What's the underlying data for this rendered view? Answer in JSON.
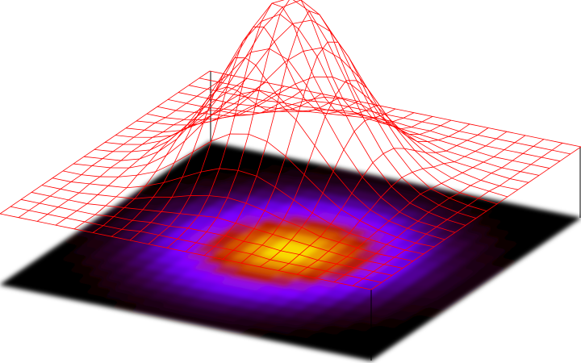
{
  "chart_data": {
    "type": "surface",
    "color": "#ff0000",
    "xlim": [
      -10,
      10
    ],
    "ylim": [
      -10,
      10
    ],
    "zlim": [
      0,
      1
    ],
    "x": [
      -10,
      -9,
      -8,
      -7,
      -6,
      -5,
      -4,
      -3,
      -2,
      -1,
      0,
      1,
      2,
      3,
      4,
      5,
      6,
      7,
      8,
      9,
      10
    ],
    "y": [
      -10,
      -9,
      -8,
      -7,
      -6,
      -5,
      -4,
      -3,
      -2,
      -1,
      0,
      1,
      2,
      3,
      4,
      5,
      6,
      7,
      8,
      9,
      10
    ],
    "z": [
      [
        0,
        0,
        0,
        0,
        0,
        0,
        0,
        0,
        0,
        0,
        0,
        0,
        0,
        0,
        0,
        0,
        0,
        0,
        0,
        0,
        0
      ],
      [
        0,
        0,
        0,
        0,
        0,
        0,
        0,
        0.01,
        0.01,
        0.01,
        0.01,
        0.01,
        0.01,
        0.01,
        0,
        0,
        0,
        0,
        0,
        0,
        0
      ],
      [
        0,
        0,
        0,
        0,
        0,
        0.01,
        0.01,
        0.02,
        0.02,
        0.03,
        0.03,
        0.03,
        0.02,
        0.02,
        0.01,
        0.01,
        0,
        0,
        0,
        0,
        0
      ],
      [
        0,
        0,
        0,
        0,
        0.01,
        0.02,
        0.03,
        0.04,
        0.05,
        0.06,
        0.07,
        0.06,
        0.05,
        0.04,
        0.03,
        0.02,
        0.01,
        0,
        0,
        0,
        0
      ],
      [
        0,
        0,
        0,
        0.01,
        0.02,
        0.03,
        0.06,
        0.08,
        0.11,
        0.13,
        0.14,
        0.13,
        0.11,
        0.08,
        0.06,
        0.03,
        0.02,
        0.01,
        0,
        0,
        0
      ],
      [
        0,
        0,
        0.01,
        0.02,
        0.03,
        0.06,
        0.1,
        0.15,
        0.2,
        0.24,
        0.25,
        0.24,
        0.2,
        0.15,
        0.1,
        0.06,
        0.03,
        0.02,
        0.01,
        0,
        0
      ],
      [
        0,
        0,
        0.01,
        0.03,
        0.06,
        0.1,
        0.17,
        0.25,
        0.33,
        0.39,
        0.41,
        0.39,
        0.33,
        0.25,
        0.17,
        0.1,
        0.06,
        0.03,
        0.01,
        0,
        0
      ],
      [
        0,
        0.01,
        0.02,
        0.04,
        0.08,
        0.15,
        0.25,
        0.37,
        0.49,
        0.57,
        0.61,
        0.57,
        0.49,
        0.37,
        0.25,
        0.15,
        0.08,
        0.04,
        0.02,
        0.01,
        0
      ],
      [
        0,
        0.01,
        0.02,
        0.05,
        0.11,
        0.2,
        0.33,
        0.49,
        0.64,
        0.76,
        0.8,
        0.76,
        0.64,
        0.49,
        0.33,
        0.2,
        0.11,
        0.05,
        0.02,
        0.01,
        0
      ],
      [
        0,
        0.01,
        0.03,
        0.06,
        0.13,
        0.24,
        0.39,
        0.57,
        0.76,
        0.89,
        0.95,
        0.89,
        0.76,
        0.57,
        0.39,
        0.24,
        0.13,
        0.06,
        0.03,
        0.01,
        0
      ],
      [
        0,
        0.01,
        0.03,
        0.07,
        0.14,
        0.25,
        0.41,
        0.61,
        0.8,
        0.95,
        1,
        0.95,
        0.8,
        0.61,
        0.41,
        0.25,
        0.14,
        0.07,
        0.03,
        0.01,
        0
      ],
      [
        0,
        0.01,
        0.03,
        0.06,
        0.13,
        0.24,
        0.39,
        0.57,
        0.76,
        0.89,
        0.95,
        0.89,
        0.76,
        0.57,
        0.39,
        0.24,
        0.13,
        0.06,
        0.03,
        0.01,
        0
      ],
      [
        0,
        0.01,
        0.02,
        0.05,
        0.11,
        0.2,
        0.33,
        0.49,
        0.64,
        0.76,
        0.8,
        0.76,
        0.64,
        0.49,
        0.33,
        0.2,
        0.11,
        0.05,
        0.02,
        0.01,
        0
      ],
      [
        0,
        0.01,
        0.02,
        0.04,
        0.08,
        0.15,
        0.25,
        0.37,
        0.49,
        0.57,
        0.61,
        0.57,
        0.49,
        0.37,
        0.25,
        0.15,
        0.08,
        0.04,
        0.02,
        0.01,
        0
      ],
      [
        0,
        0,
        0.01,
        0.03,
        0.06,
        0.1,
        0.17,
        0.25,
        0.33,
        0.39,
        0.41,
        0.39,
        0.33,
        0.25,
        0.17,
        0.1,
        0.06,
        0.03,
        0.01,
        0,
        0
      ],
      [
        0,
        0,
        0.01,
        0.02,
        0.03,
        0.06,
        0.1,
        0.15,
        0.2,
        0.24,
        0.25,
        0.24,
        0.2,
        0.15,
        0.1,
        0.06,
        0.03,
        0.02,
        0.01,
        0,
        0
      ],
      [
        0,
        0,
        0,
        0.01,
        0.02,
        0.03,
        0.06,
        0.08,
        0.11,
        0.13,
        0.14,
        0.13,
        0.11,
        0.08,
        0.06,
        0.03,
        0.02,
        0.01,
        0,
        0,
        0
      ],
      [
        0,
        0,
        0,
        0,
        0.01,
        0.02,
        0.03,
        0.04,
        0.05,
        0.06,
        0.07,
        0.06,
        0.05,
        0.04,
        0.03,
        0.02,
        0.01,
        0,
        0,
        0,
        0
      ],
      [
        0,
        0,
        0,
        0,
        0,
        0.01,
        0.01,
        0.02,
        0.02,
        0.03,
        0.03,
        0.03,
        0.02,
        0.02,
        0.01,
        0.01,
        0,
        0,
        0,
        0,
        0
      ],
      [
        0,
        0,
        0,
        0,
        0,
        0,
        0,
        0.01,
        0.01,
        0.01,
        0.01,
        0.01,
        0.01,
        0.01,
        0,
        0,
        0,
        0,
        0,
        0,
        0
      ],
      [
        0,
        0,
        0,
        0,
        0,
        0,
        0,
        0,
        0,
        0,
        0,
        0,
        0,
        0,
        0,
        0,
        0,
        0,
        0,
        0,
        0
      ]
    ]
  }
}
